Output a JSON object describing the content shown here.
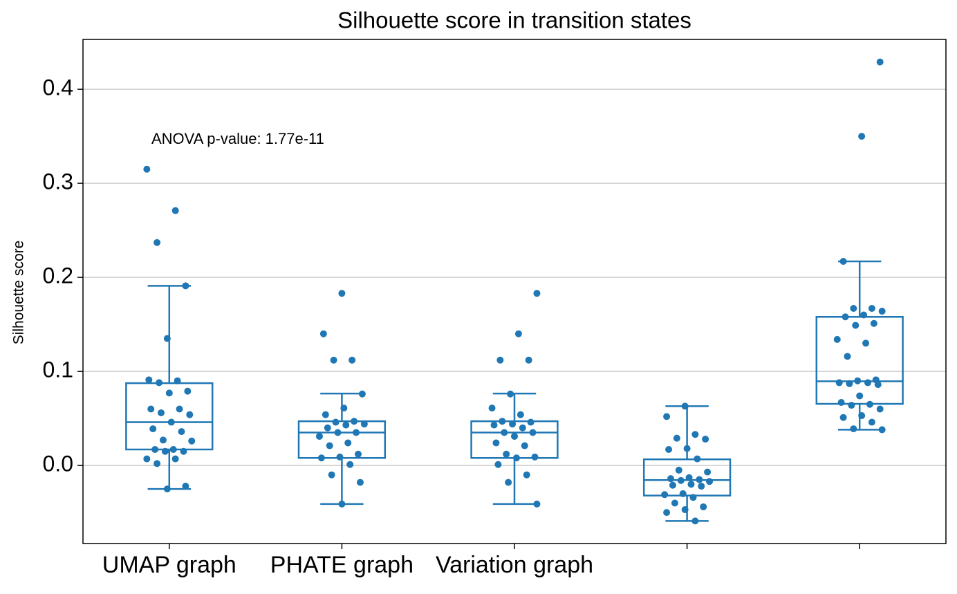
{
  "chart_data": {
    "type": "box",
    "title": "Silhouette score in transition states",
    "y_label": "Silhouette score",
    "annotation": "ANOVA p-value: 1.77e-11",
    "categories": [
      "UMAP graph",
      "PHATE graph",
      "Variation graph",
      null,
      null
    ],
    "color": "#1f77b4",
    "grid": true,
    "ylim": [
      -0.083,
      0.453
    ],
    "yticks": [
      {
        "value": 0,
        "label": "0.0"
      },
      0.1,
      0.2,
      0.3,
      0.4
    ],
    "boxes": [
      {
        "whislo": -0.025,
        "q1": 0.017,
        "med": 0.046,
        "q3": 0.0875,
        "whishi": 0.191,
        "points": [
          0.315,
          0.271,
          0.237,
          0.191,
          0.135,
          0.091,
          0.09,
          0.088,
          0.079,
          0.077,
          0.06,
          0.06,
          0.056,
          0.054,
          0.046,
          0.039,
          0.036,
          0.027,
          0.026,
          0.017,
          0.017,
          0.015,
          0.015,
          0.007,
          0.007,
          0.002,
          -0.022,
          -0.025
        ]
      },
      {
        "whislo": -0.041,
        "q1": 0.008,
        "med": 0.035,
        "q3": 0.047,
        "whishi": 0.0765,
        "points": [
          0.183,
          0.14,
          0.112,
          0.112,
          0.076,
          0.061,
          0.054,
          0.047,
          0.046,
          0.044,
          0.043,
          0.04,
          0.035,
          0.035,
          0.031,
          0.024,
          0.021,
          0.012,
          0.009,
          0.008,
          0.001,
          -0.01,
          -0.018,
          -0.041
        ]
      },
      {
        "whislo": -0.041,
        "q1": 0.008,
        "med": 0.035,
        "q3": 0.047,
        "whishi": 0.0765,
        "points": [
          0.183,
          0.14,
          0.112,
          0.112,
          0.076,
          0.061,
          0.054,
          0.047,
          0.046,
          0.044,
          0.043,
          0.04,
          0.035,
          0.035,
          0.031,
          0.024,
          0.021,
          0.012,
          0.009,
          0.008,
          0.001,
          -0.01,
          -0.018,
          -0.041
        ]
      },
      {
        "whislo": -0.059,
        "q1": -0.032,
        "med": -0.0155,
        "q3": 0.0065,
        "whishi": 0.063,
        "points": [
          0.063,
          0.052,
          0.033,
          0.029,
          0.028,
          0.018,
          0.017,
          0.007,
          -0.005,
          -0.007,
          -0.013,
          -0.014,
          -0.015,
          -0.016,
          -0.017,
          -0.02,
          -0.021,
          -0.022,
          -0.03,
          -0.031,
          -0.034,
          -0.04,
          -0.044,
          -0.047,
          -0.05,
          -0.059
        ]
      },
      {
        "whislo": 0.038,
        "q1": 0.0655,
        "med": 0.0895,
        "q3": 0.158,
        "whishi": 0.217,
        "points": [
          0.429,
          0.35,
          0.217,
          0.167,
          0.167,
          0.164,
          0.16,
          0.158,
          0.151,
          0.149,
          0.134,
          0.13,
          0.116,
          0.091,
          0.09,
          0.088,
          0.088,
          0.087,
          0.086,
          0.074,
          0.067,
          0.065,
          0.064,
          0.06,
          0.053,
          0.051,
          0.046,
          0.039,
          0.038
        ]
      }
    ]
  }
}
